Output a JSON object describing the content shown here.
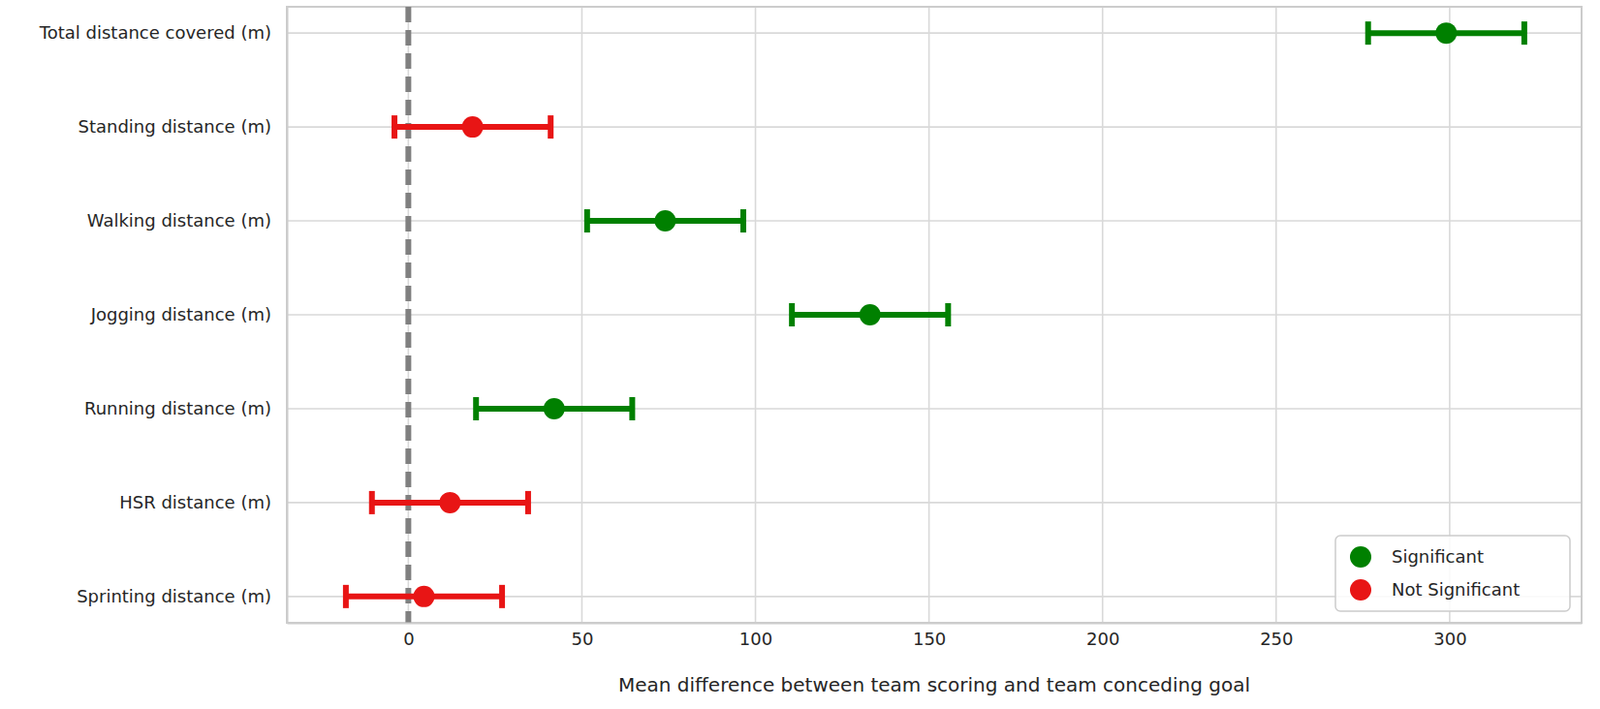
{
  "chart_data": {
    "type": "errorbar",
    "orientation": "horizontal",
    "xlabel": "Mean difference between team scoring and team conceding goal",
    "categories": [
      "Total distance covered (m)",
      "Standing distance (m)",
      "Walking distance (m)",
      "Jogging distance (m)",
      "Running distance (m)",
      "HSR distance (m)",
      "Sprinting distance (m)"
    ],
    "series": [
      {
        "name": "Significant",
        "color": "#008000",
        "marker": "circle",
        "values": [
          299,
          null,
          74,
          133,
          42,
          null,
          null
        ],
        "errors": [
          22.5,
          null,
          22.5,
          22.5,
          22.5,
          null,
          null
        ]
      },
      {
        "name": "Not Significant",
        "color": "#e81515",
        "marker": "circle",
        "values": [
          null,
          18.5,
          null,
          null,
          null,
          12,
          4.5
        ],
        "errors": [
          null,
          22.5,
          null,
          null,
          null,
          22.5,
          22.5
        ]
      }
    ],
    "reference_line": 0,
    "xlim": [
      -35,
      338
    ],
    "xticks": [
      0,
      50,
      100,
      150,
      200,
      250,
      300
    ],
    "grid": true,
    "legend": "lower right"
  }
}
